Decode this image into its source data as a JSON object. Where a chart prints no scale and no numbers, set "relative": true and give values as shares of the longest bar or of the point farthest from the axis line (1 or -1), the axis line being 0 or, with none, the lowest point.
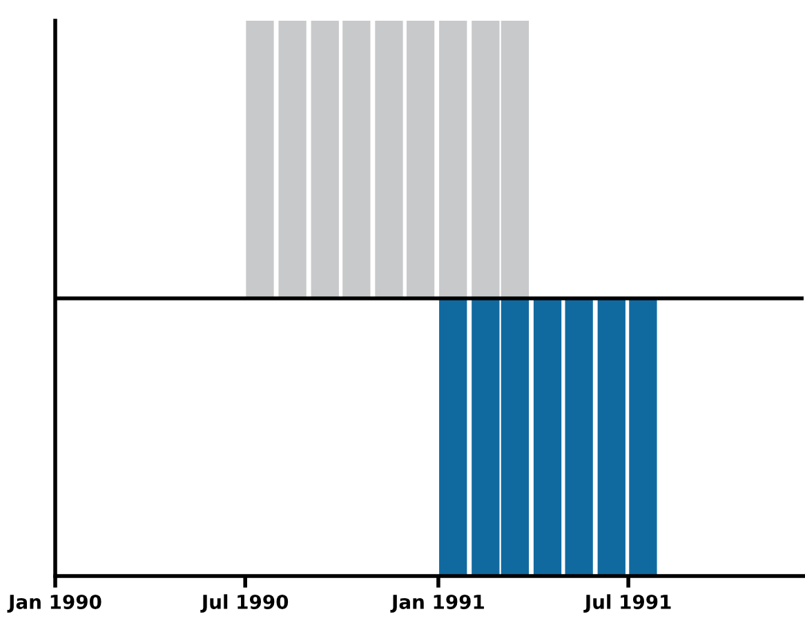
{
  "chart_data": {
    "type": "bar",
    "relative": true,
    "grid": false,
    "xlim": [
      "1990-01",
      "1991-12-15"
    ],
    "xticks": [
      {
        "value": "1990-01",
        "label": "Jan 1990"
      },
      {
        "value": "1990-07",
        "label": "Jul 1990"
      },
      {
        "value": "1991-01",
        "label": "Jan 1991"
      },
      {
        "value": "1991-07",
        "label": "Jul 1991"
      }
    ],
    "series": [
      {
        "color": "#c8c9cb",
        "x": [
          "1990-07-15",
          "1990-08-15",
          "1990-09-15",
          "1990-10-15",
          "1990-11-15",
          "1990-12-15",
          "1991-01-15",
          "1991-02-15",
          "1991-03-15"
        ],
        "values": [
          1,
          1,
          1,
          1,
          1,
          1,
          1,
          1,
          1
        ]
      },
      {
        "color": "#106aa0",
        "x": [
          "1991-01-15",
          "1991-02-15",
          "1991-03-15",
          "1991-04-15",
          "1991-05-15",
          "1991-06-15",
          "1991-07-15"
        ],
        "values": [
          -1,
          -1,
          -1,
          -1,
          -1,
          -1,
          -1
        ]
      }
    ]
  }
}
